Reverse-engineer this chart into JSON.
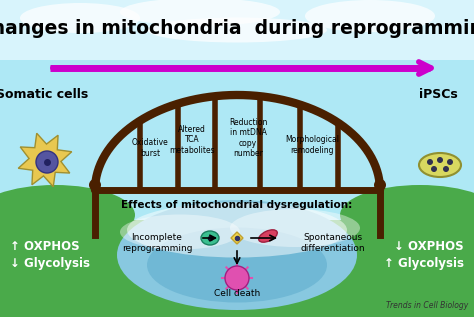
{
  "title": "Changes in mitochondria  during reprogramming",
  "arrow_color": "#cc00cc",
  "bridge_color": "#4a2000",
  "left_label": "Somatic cells",
  "right_label": "iPSCs",
  "bridge_labels": [
    "Oxidative\nburst",
    "Altered\nTCA\nmetabolites",
    "Reduction\nin mtDNA\ncopy\nnumber",
    "Morphological\nremodeling"
  ],
  "dysreg_title": "Effects of mitochondrial dysregulation:",
  "dysreg_left": "Incomplete\nreprogramming",
  "dysreg_right": "Spontaneous\ndifferentiation",
  "dysreg_bottom": "Cell death",
  "left_met1": "↑ OXPHOS",
  "left_met2": "↓ Glycolysis",
  "right_met1": "↓ OXPHOS",
  "right_met2": "↑ Glycolysis",
  "watermark": "Trends in Cell Biology",
  "sky_color": "#aee8f5",
  "grass_color": "#4aaa4a",
  "water_color": "#90ccdf",
  "bridge_lw": 5,
  "plank_lw": 4
}
